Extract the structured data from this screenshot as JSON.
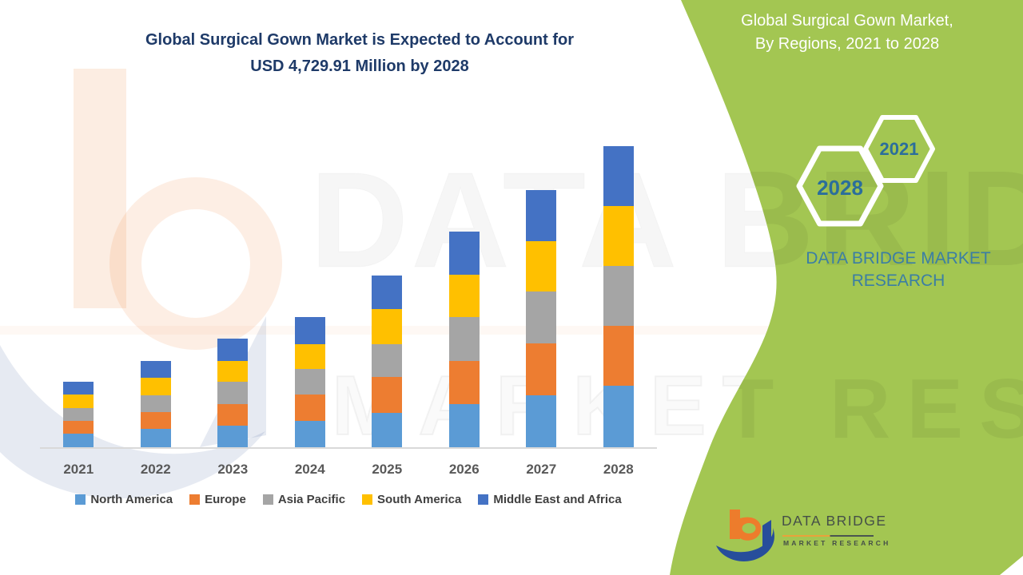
{
  "title": {
    "line1": "Global Surgical Gown Market is Expected to Account for",
    "line2": "USD 4,729.91 Million by 2028"
  },
  "panel": {
    "title_line1": "Global Surgical Gown Market,",
    "title_line2": "By Regions, 2021 to 2028",
    "hex_small": "2021",
    "hex_large": "2028",
    "brand_line1": "DATA BRIDGE MARKET",
    "brand_line2": "RESEARCH"
  },
  "watermark": {
    "row1": "DATA BRIDGE",
    "row2": "MARKET RESEARCH"
  },
  "logo": {
    "name": "DATA BRIDGE",
    "tagline": "MARKET RESEARCH"
  },
  "colors": {
    "panel_green": "#A3C652",
    "title_navy": "#1E3A68",
    "panel_text_blue": "#3B7EA4",
    "hex_text_blue": "#2B6E9B",
    "axis_label_gray": "#595959",
    "legend_text_gray": "#404040",
    "logo_orange": "#ED7C2C",
    "logo_blue": "#274E9B"
  },
  "chart_data": {
    "type": "bar",
    "stacked": true,
    "title": "Global Surgical Gown Market is Expected to Account for USD 4,729.91 Million by 2028",
    "unit": "USD Million",
    "categories": [
      "2021",
      "2022",
      "2023",
      "2024",
      "2025",
      "2026",
      "2027",
      "2028"
    ],
    "series": [
      {
        "name": "North America",
        "color": "#5B9BD5",
        "values": [
          213,
          289,
          339,
          414,
          539,
          677,
          816,
          966
        ]
      },
      {
        "name": "Europe",
        "color": "#ED7D31",
        "values": [
          201,
          263,
          339,
          414,
          565,
          677,
          816,
          941
        ]
      },
      {
        "name": "Asia Pacific",
        "color": "#A5A5A5",
        "values": [
          201,
          263,
          351,
          401,
          514,
          690,
          816,
          941
        ]
      },
      {
        "name": "South America",
        "color": "#FFC000",
        "values": [
          213,
          276,
          326,
          389,
          552,
          665,
          790,
          941
        ]
      },
      {
        "name": "Middle East and Africa",
        "color": "#4472C4",
        "values": [
          201,
          263,
          351,
          427,
          527,
          677,
          803,
          941
        ]
      }
    ],
    "totals": [
      1029,
      1354,
      1706,
      2045,
      2697,
      3386,
      4041,
      4730
    ],
    "ylim": [
      0,
      4800
    ],
    "grid": false,
    "legend_position": "bottom",
    "xlabel": "",
    "ylabel": ""
  }
}
